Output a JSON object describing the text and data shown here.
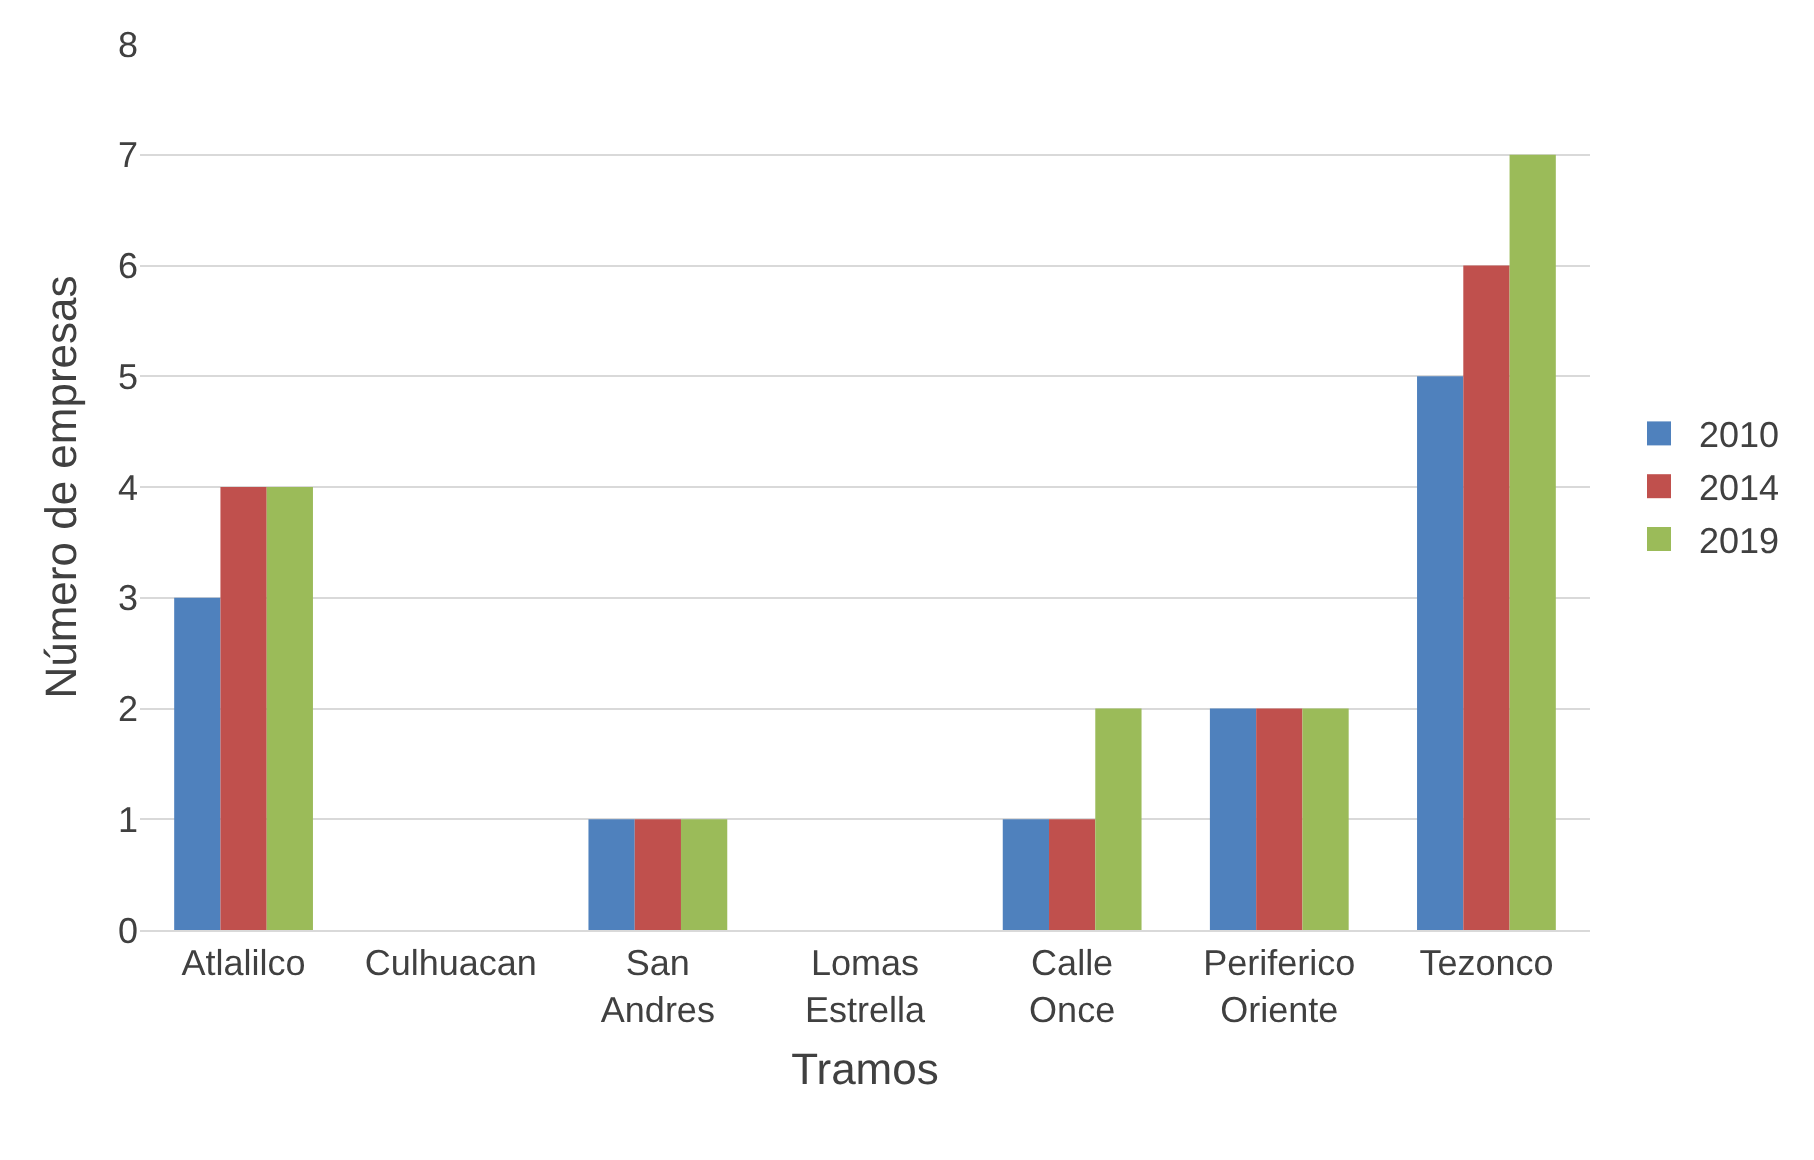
{
  "chart_data": {
    "type": "bar",
    "xlabel": "Tramos",
    "ylabel": "Número de empresas",
    "categories": [
      "Atlalilco",
      "Culhuacan",
      "San Andres",
      "Lomas Estrella",
      "Calle Once",
      "Periferico Oriente",
      "Tezonco"
    ],
    "series": [
      {
        "name": "2010",
        "color": "#4f81bd",
        "values": [
          3,
          0,
          1,
          0,
          1,
          2,
          5
        ]
      },
      {
        "name": "2014",
        "color": "#c0504d",
        "values": [
          4,
          0,
          1,
          0,
          1,
          2,
          6
        ]
      },
      {
        "name": "2019",
        "color": "#9bbb59",
        "values": [
          4,
          0,
          1,
          0,
          2,
          2,
          7
        ]
      }
    ],
    "ylim": [
      0,
      8
    ],
    "yticks": [
      0,
      1,
      2,
      3,
      4,
      5,
      6,
      7,
      8
    ],
    "grid": "y",
    "legend": "right"
  }
}
